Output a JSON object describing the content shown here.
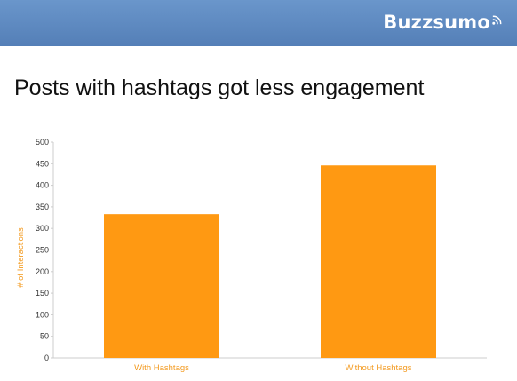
{
  "header": {
    "brand": "Buzzsumo",
    "brand_icon": "wifi-signal-icon",
    "bar_color": "#5f8dc4"
  },
  "slide": {
    "title": "Posts with hashtags got less engagement"
  },
  "chart_data": {
    "type": "bar",
    "categories": [
      "With Hashtags",
      "Without Hashtags"
    ],
    "values": [
      333,
      446
    ],
    "ylabel": "# of Interactions",
    "xlabel": "",
    "ylim": [
      0,
      500
    ],
    "yticks": [
      0,
      50,
      100,
      150,
      200,
      250,
      300,
      350,
      400,
      450,
      500
    ],
    "bar_color": "#ff9912",
    "label_color": "#f39a1f",
    "grid": false
  }
}
